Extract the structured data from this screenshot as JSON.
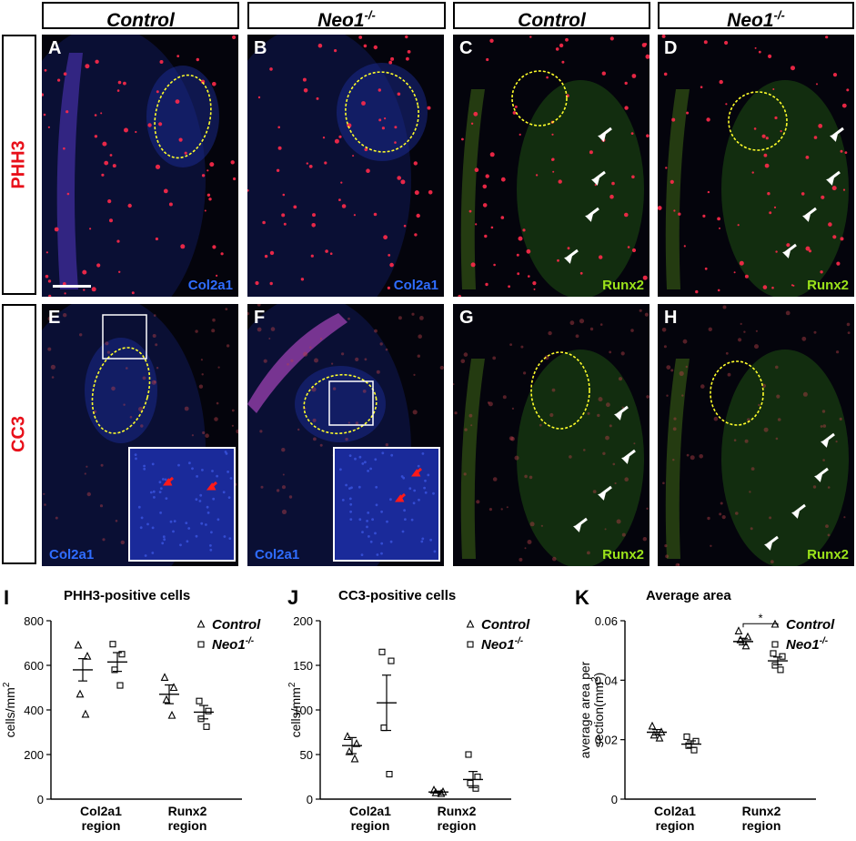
{
  "headers": [
    {
      "text": "Control",
      "sup": ""
    },
    {
      "text": "Neo1",
      "sup": "-/-"
    },
    {
      "text": "Control",
      "sup": ""
    },
    {
      "text": "Neo1",
      "sup": "-/-"
    }
  ],
  "row_labels": [
    "PHH3",
    "CC3"
  ],
  "panels": [
    {
      "letter": "A",
      "marker": "Col2a1",
      "marker_color": "blue"
    },
    {
      "letter": "B",
      "marker": "Col2a1",
      "marker_color": "blue"
    },
    {
      "letter": "C",
      "marker": "Runx2",
      "marker_color": "green"
    },
    {
      "letter": "D",
      "marker": "Runx2",
      "marker_color": "green"
    },
    {
      "letter": "E",
      "marker": "Col2a1",
      "marker_color": "blue"
    },
    {
      "letter": "F",
      "marker": "Col2a1",
      "marker_color": "blue"
    },
    {
      "letter": "G",
      "marker": "Runx2",
      "marker_color": "green"
    },
    {
      "letter": "H",
      "marker": "Runx2",
      "marker_color": "green"
    }
  ],
  "chart_data": [
    {
      "type": "scatter",
      "panel_letter": "I",
      "title": "PHH3-positive cells",
      "ylabel": "cells/mm2",
      "ylim": [
        0,
        800
      ],
      "yticks": [
        0,
        200,
        400,
        600,
        800
      ],
      "categories": [
        "Col2a1 region",
        "Runx2 region"
      ],
      "series": [
        {
          "name": "Control",
          "sup": "",
          "marker": "triangle",
          "points": [
            [
              690,
              640,
              470,
              380
            ],
            [
              545,
              500,
              445,
              375
            ]
          ],
          "mean": [
            580,
            470
          ],
          "sem": [
            50,
            42
          ]
        },
        {
          "name": "Neo1",
          "sup": "-/-",
          "marker": "square",
          "points": [
            [
              695,
              650,
              580,
              510
            ],
            [
              440,
              395,
              360,
              325
            ]
          ],
          "mean": [
            615,
            390
          ],
          "sem": [
            42,
            30
          ]
        }
      ]
    },
    {
      "type": "scatter",
      "panel_letter": "J",
      "title": "CC3-positive cells",
      "ylabel": "cells/mm2",
      "ylim": [
        0,
        200
      ],
      "yticks": [
        0,
        50,
        100,
        150,
        200
      ],
      "categories": [
        "Col2a1 region",
        "Runx2 region"
      ],
      "series": [
        {
          "name": "Control",
          "sup": "",
          "marker": "triangle",
          "points": [
            [
              70,
              62,
              53,
              45
            ],
            [
              10,
              8,
              7,
              6
            ]
          ],
          "mean": [
            60,
            8
          ],
          "sem": [
            9,
            1
          ]
        },
        {
          "name": "Neo1",
          "sup": "-/-",
          "marker": "square",
          "points": [
            [
              165,
              155,
              80,
              28
            ],
            [
              50,
              25,
              18,
              12
            ]
          ],
          "mean": [
            108,
            22
          ],
          "sem": [
            31,
            9
          ]
        }
      ]
    },
    {
      "type": "scatter",
      "panel_letter": "K",
      "title": "Average area",
      "ylabel": "average area per section(mm2)",
      "ylim": [
        0,
        0.06
      ],
      "yticks": [
        "0",
        "0.02",
        "0.04",
        "0.06"
      ],
      "categories": [
        "Col2a1 region",
        "Runx2 region"
      ],
      "significance": "*",
      "series": [
        {
          "name": "Control",
          "sup": "",
          "marker": "triangle",
          "points": [
            [
              0.0245,
              0.0225,
              0.0215,
              0.0205
            ],
            [
              0.0565,
              0.0545,
              0.0535,
              0.0515
            ]
          ],
          "mean": [
            0.0225,
            0.053
          ],
          "sem": [
            0.0009,
            0.0011
          ]
        },
        {
          "name": "Neo1",
          "sup": "-/-",
          "marker": "square",
          "points": [
            [
              0.021,
              0.0195,
              0.018,
              0.0165
            ],
            [
              0.049,
              0.048,
              0.045,
              0.0435
            ]
          ],
          "mean": [
            0.0185,
            0.0465
          ],
          "sem": [
            0.0011,
            0.0013
          ]
        }
      ]
    }
  ]
}
